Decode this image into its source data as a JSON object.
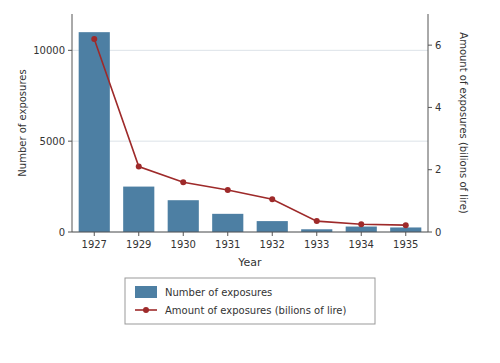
{
  "chart_data": {
    "type": "bar",
    "xlabel": "Year",
    "ylabel": "Number of exposures",
    "y2label": "Amount of exposures (bilions of lire)",
    "categories": [
      "1927",
      "1929",
      "1930",
      "1931",
      "1932",
      "1933",
      "1934",
      "1935"
    ],
    "series": [
      {
        "name": "Number of exposures",
        "type": "bar",
        "color": "#4d7fa3",
        "values": [
          11000,
          2500,
          1750,
          1000,
          600,
          150,
          300,
          250
        ]
      },
      {
        "name": "Amount of exposures (bilions of lire)",
        "type": "line",
        "color": "#9e2a2a",
        "marker": "circle",
        "axis": "y2",
        "values": [
          6.2,
          2.1,
          1.6,
          1.35,
          1.05,
          0.35,
          0.25,
          0.22
        ]
      }
    ],
    "ylim": [
      0,
      12000
    ],
    "yticks": [
      0,
      5000,
      10000
    ],
    "y2lim": [
      0,
      7
    ],
    "y2ticks": [
      0,
      2,
      4,
      6
    ],
    "grid": true,
    "legend": "bottom"
  }
}
